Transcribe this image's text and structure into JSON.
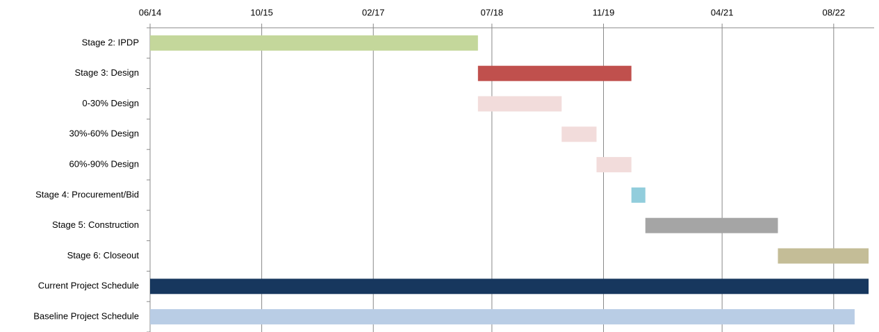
{
  "chart_data": {
    "type": "gantt",
    "xlim": [
      "2014-06",
      "2023-01"
    ],
    "xticks": [
      {
        "value": "2014-06",
        "label": "06/14"
      },
      {
        "value": "2015-10",
        "label": "10/15"
      },
      {
        "value": "2017-02",
        "label": "02/17"
      },
      {
        "value": "2018-07",
        "label": "07/18"
      },
      {
        "value": "2019-11",
        "label": "11/19"
      },
      {
        "value": "2021-04",
        "label": "04/21"
      },
      {
        "value": "2022-08",
        "label": "08/22"
      }
    ],
    "grid": true,
    "tasks": [
      {
        "name": "Stage 2: IPDP",
        "start": "2014-06",
        "end": "2018-05",
        "color": "#c4d79b"
      },
      {
        "name": "Stage 3: Design",
        "start": "2018-05",
        "end": "2020-03",
        "color": "#c0504d"
      },
      {
        "name": "0-30% Design",
        "start": "2018-05",
        "end": "2019-05",
        "color": "#f2dcdb"
      },
      {
        "name": "30%-60% Design",
        "start": "2019-05",
        "end": "2019-10",
        "color": "#f2dcdb"
      },
      {
        "name": "60%-90% Design",
        "start": "2019-10",
        "end": "2020-03",
        "color": "#f2dcdb"
      },
      {
        "name": "Stage 4: Procurement/Bid",
        "start": "2020-03",
        "end": "2020-05",
        "color": "#92cddc"
      },
      {
        "name": "Stage 5: Construction",
        "start": "2020-05",
        "end": "2021-12",
        "color": "#a5a5a5"
      },
      {
        "name": "Stage 6: Closeout",
        "start": "2021-12",
        "end": "2023-01",
        "color": "#c4bd97"
      },
      {
        "name": "Current Project Schedule",
        "start": "2014-06",
        "end": "2023-01",
        "color": "#17375e"
      },
      {
        "name": "Baseline Project Schedule",
        "start": "2014-06",
        "end": "2022-11",
        "color": "#b9cde5"
      }
    ]
  }
}
